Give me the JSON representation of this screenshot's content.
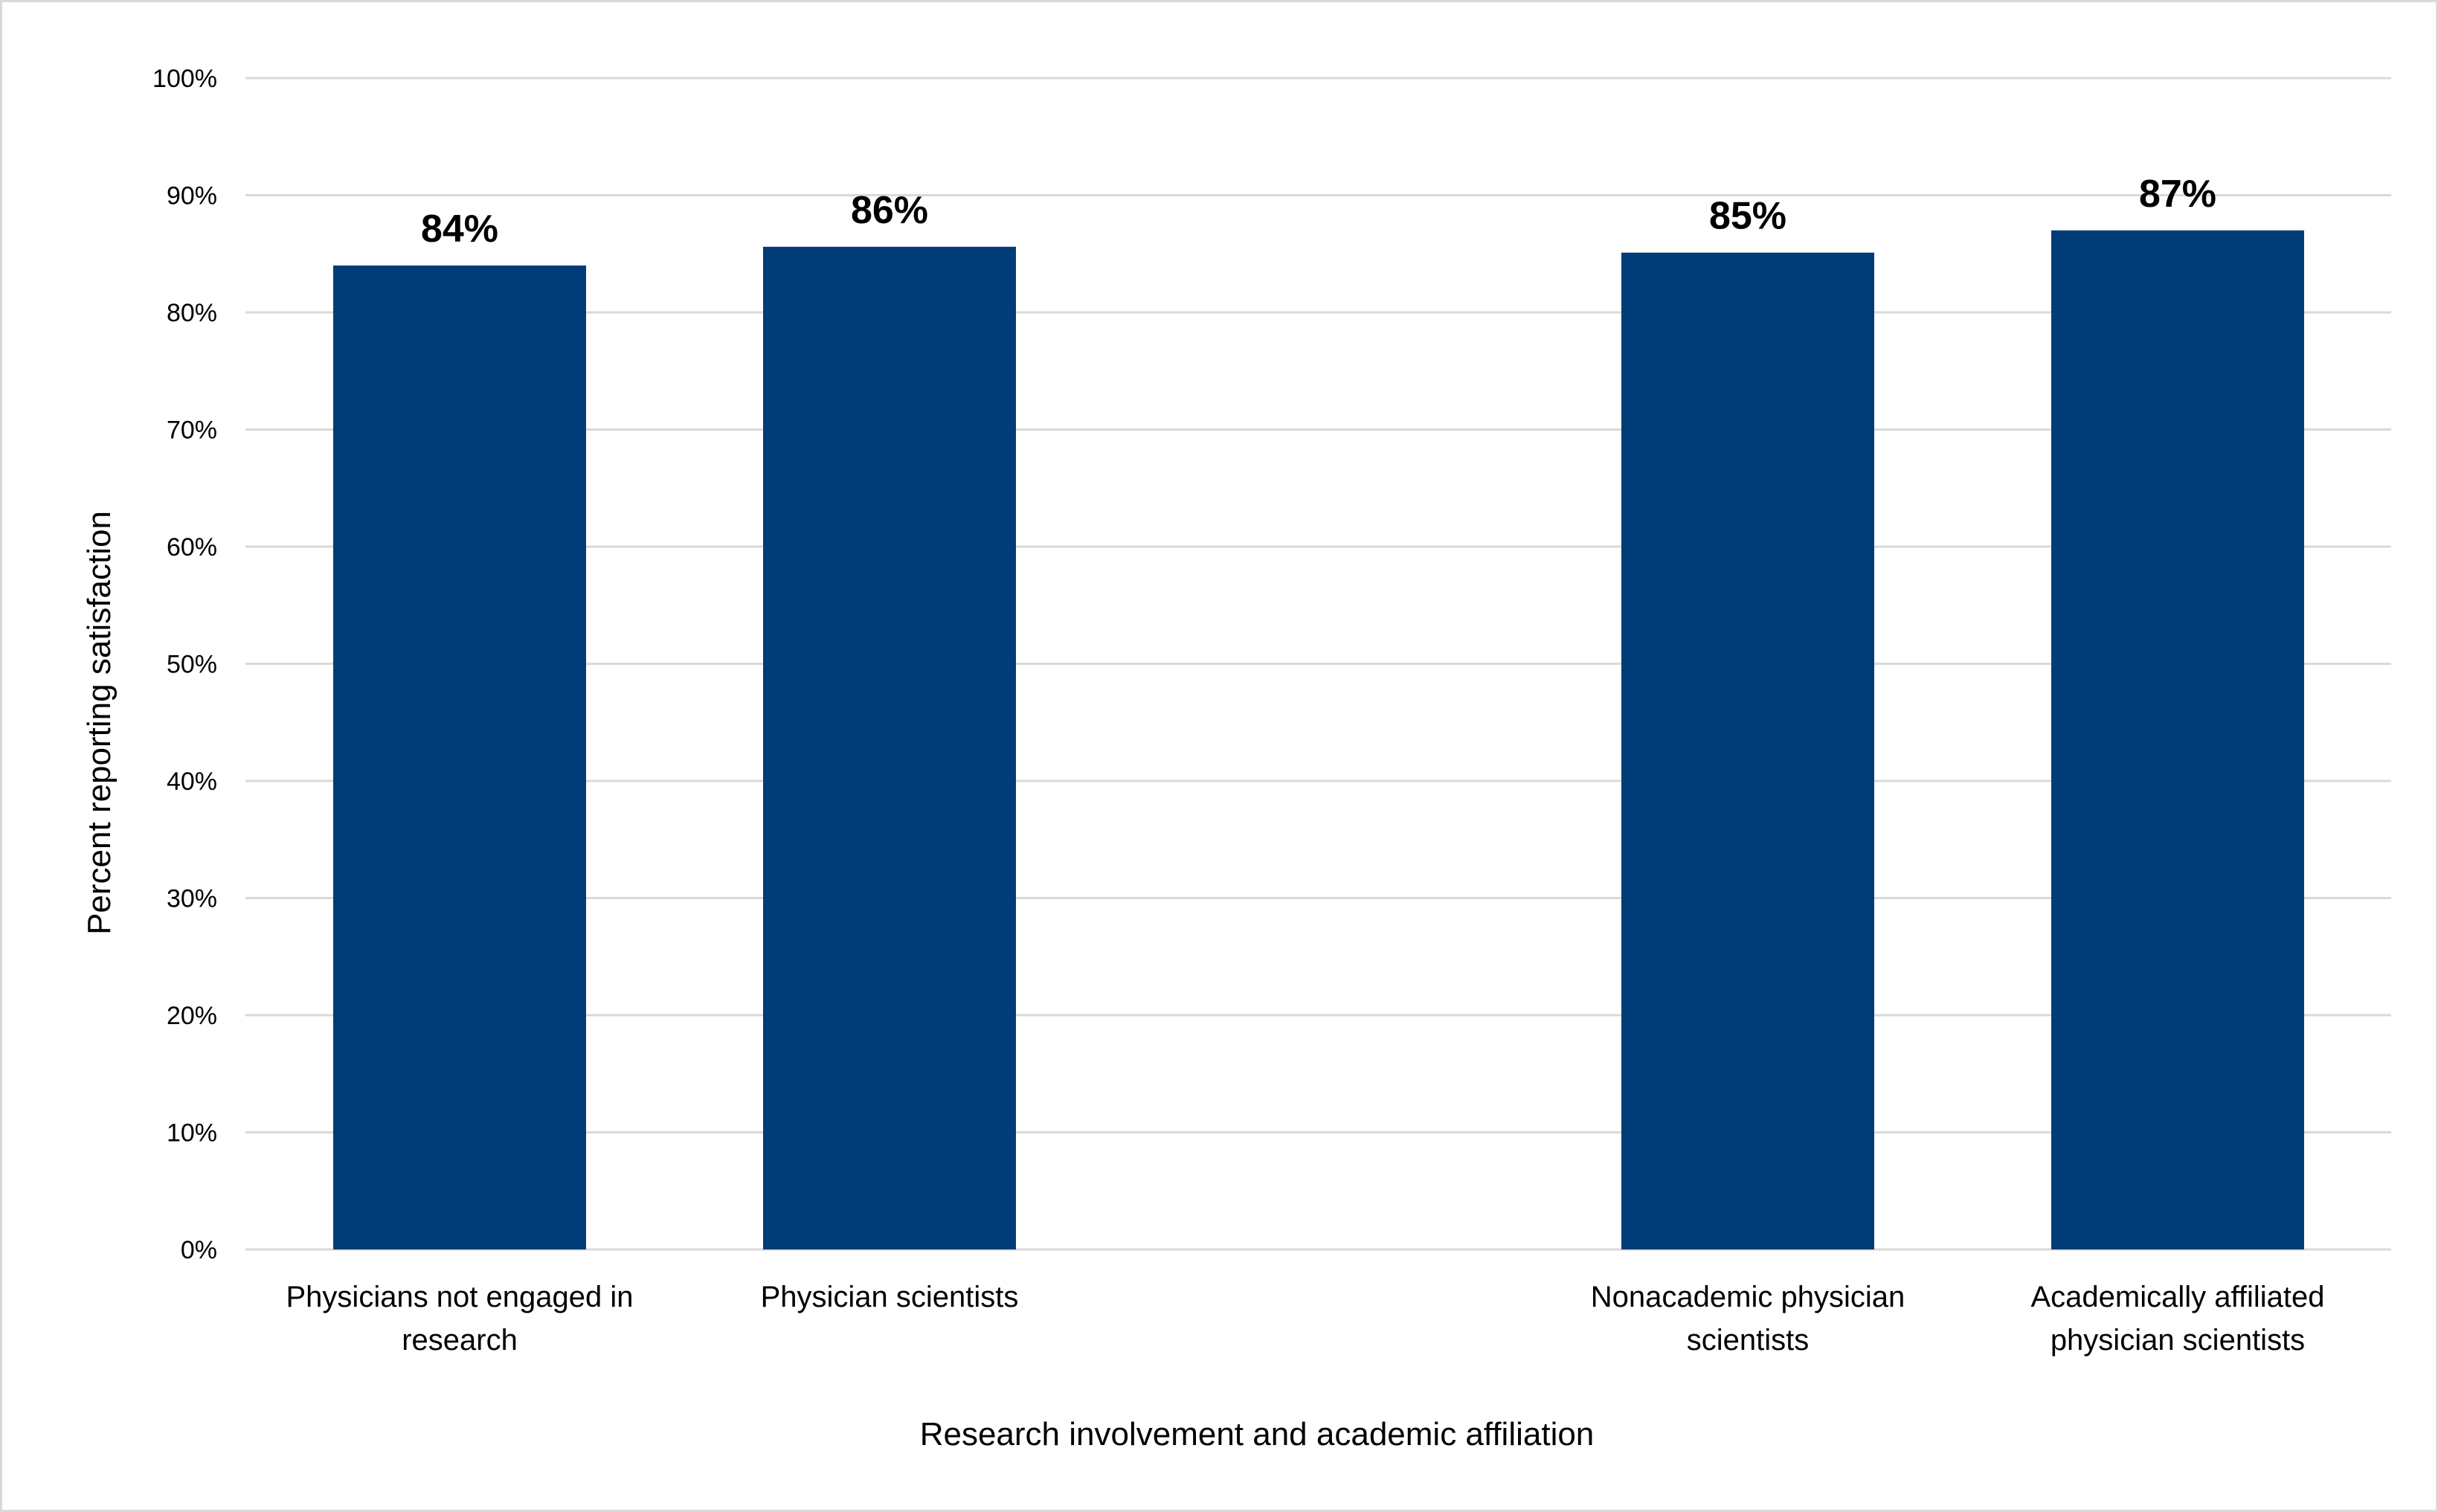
{
  "chart_data": {
    "type": "bar",
    "title": "",
    "xlabel": "Research involvement and academic affiliation",
    "ylabel": "Percent reporting satisfaction",
    "ylim": [
      0,
      100
    ],
    "yticks": [
      "0%",
      "10%",
      "20%",
      "30%",
      "40%",
      "50%",
      "60%",
      "70%",
      "80%",
      "90%",
      "100%"
    ],
    "grid": true,
    "legend": "none",
    "categories": [
      [
        "Physicians not engaged in",
        "research"
      ],
      [
        "Physician scientists"
      ],
      [
        "Nonacademic physician",
        "scientists"
      ],
      [
        "Academically affiliated",
        "physician scientists"
      ]
    ],
    "values": [
      84,
      85.6,
      85.1,
      87
    ],
    "data_labels": [
      "84%",
      "86%",
      "85%",
      "87%"
    ],
    "bar_color": "#003C78"
  }
}
